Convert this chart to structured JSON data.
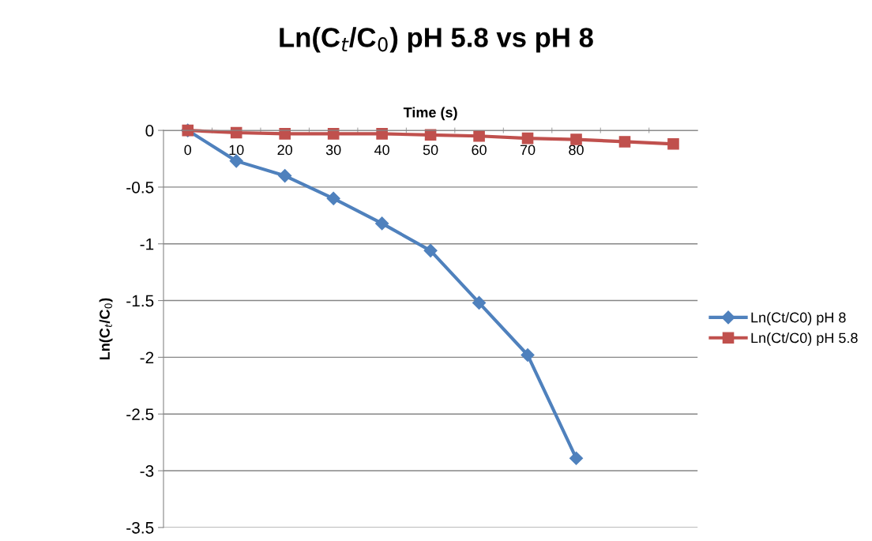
{
  "chart_data": {
    "type": "line",
    "title": "Ln(C$_{t}$/C$_{0}$) pH 5.8 vs pH 8",
    "xlabel": "Time (s)",
    "ylabel": "Ln(C$_{t}$/C$_{0}$)",
    "categories": [
      "0",
      "10",
      "20",
      "30",
      "40",
      "50",
      "60",
      "70",
      "80",
      null,
      null
    ],
    "series": [
      {
        "name": "Ln(Ct/C0) pH 8",
        "color": "#4f81bd",
        "marker": "diamond",
        "values": [
          0,
          -0.27,
          -0.4,
          -0.6,
          -0.82,
          -1.06,
          -1.52,
          -1.98,
          -2.89,
          null,
          null
        ]
      },
      {
        "name": "Ln(Ct/C0) pH 5.8",
        "color": "#c0504d",
        "marker": "square",
        "values": [
          0,
          -0.02,
          -0.03,
          -0.03,
          -0.03,
          -0.04,
          -0.05,
          -0.07,
          -0.08,
          -0.1,
          -0.12
        ]
      }
    ],
    "ylim": [
      -3.5,
      0
    ],
    "yticks": [
      -3.5,
      -3,
      -2.5,
      -2,
      -1.5,
      -1,
      -0.5,
      0
    ],
    "grid": "y",
    "legend": "right"
  }
}
